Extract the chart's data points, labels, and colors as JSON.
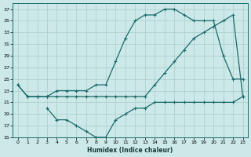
{
  "xlabel": "Humidex (Indice chaleur)",
  "bg_color": "#cce8e8",
  "grid_color": "#aacccc",
  "line_color": "#1a6b6b",
  "xlim": [
    -0.5,
    23.5
  ],
  "ylim": [
    15,
    38
  ],
  "xtick_vals": [
    0,
    1,
    2,
    3,
    4,
    5,
    6,
    7,
    8,
    9,
    10,
    11,
    12,
    13,
    14,
    15,
    16,
    17,
    18,
    19,
    20,
    21,
    22,
    23
  ],
  "ytick_vals": [
    15,
    17,
    19,
    21,
    23,
    25,
    27,
    29,
    31,
    33,
    35,
    37
  ],
  "line_max_x": [
    0,
    1,
    2,
    3,
    4,
    5,
    6,
    7,
    8,
    9,
    10,
    11,
    12,
    13,
    14,
    15,
    16,
    17,
    18,
    19,
    20,
    21,
    22,
    23
  ],
  "line_max_y": [
    24,
    22,
    22,
    22,
    23,
    23,
    23,
    23,
    24,
    24,
    28,
    32,
    35,
    36,
    36,
    37,
    37,
    36,
    35,
    35,
    35,
    29,
    25,
    25
  ],
  "line_mean_x": [
    0,
    1,
    2,
    3,
    4,
    5,
    6,
    7,
    8,
    9,
    10,
    11,
    12,
    13,
    14,
    15,
    16,
    17,
    18,
    19,
    20,
    21,
    22,
    23
  ],
  "line_mean_y": [
    24,
    22,
    22,
    22,
    22,
    22,
    22,
    22,
    22,
    22,
    22,
    22,
    22,
    22,
    24,
    26,
    28,
    30,
    32,
    33,
    34,
    35,
    36,
    22
  ],
  "line_min_x": [
    3,
    4,
    5,
    6,
    7,
    8,
    9,
    10,
    11,
    12,
    13,
    14,
    15,
    16,
    17,
    18,
    19,
    20,
    21,
    22,
    23
  ],
  "line_min_y": [
    20,
    18,
    18,
    17,
    16,
    15,
    15,
    18,
    19,
    20,
    20,
    21,
    21,
    21,
    21,
    21,
    21,
    21,
    21,
    21,
    22
  ]
}
